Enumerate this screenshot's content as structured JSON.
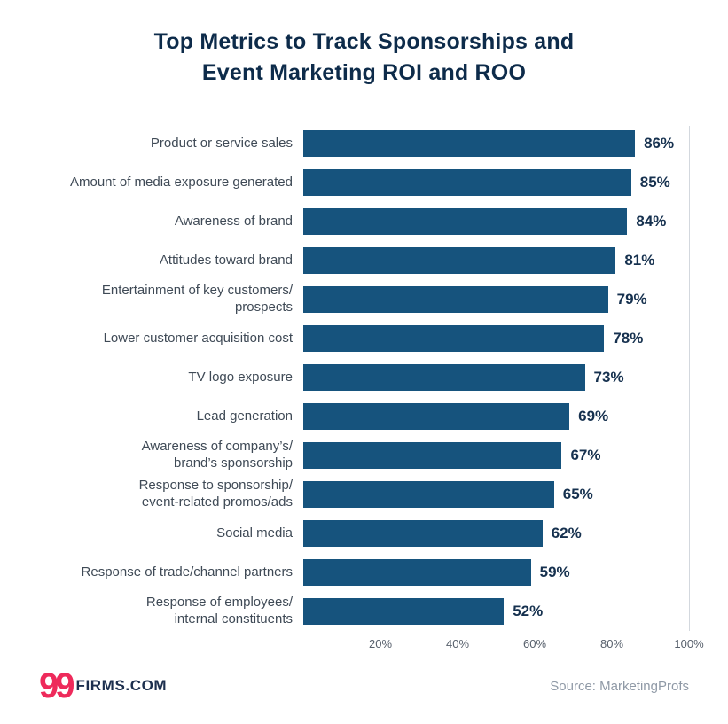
{
  "title_lines": [
    "Top Metrics to Track Sponsorships and",
    "Event Marketing ROI and ROO"
  ],
  "chart_data": {
    "type": "bar",
    "orientation": "horizontal",
    "title": "Top Metrics to Track Sponsorships and Event Marketing ROI and ROO",
    "categories": [
      "Product or service sales",
      "Amount of media exposure generated",
      "Awareness of brand",
      "Attitudes toward brand",
      "Entertainment of key customers/\nprospects",
      "Lower customer acquisition cost",
      "TV logo exposure",
      "Lead generation",
      "Awareness of company’s/\nbrand’s sponsorship",
      "Response to sponsorship/\nevent-related promos/ads",
      "Social media",
      "Response of trade/channel partners",
      "Response of employees/\ninternal constituents"
    ],
    "values": [
      86,
      85,
      84,
      81,
      79,
      78,
      73,
      69,
      67,
      65,
      62,
      59,
      52
    ],
    "value_suffix": "%",
    "xlim": [
      0,
      100
    ],
    "x_ticks": [
      20,
      40,
      60,
      80,
      100
    ],
    "x_tick_suffix": "%",
    "bar_color": "#16537d",
    "grid": "right-edge-line-only",
    "legend": "none"
  },
  "footer": {
    "logo_99": "99",
    "logo_text": "FIRMS.COM",
    "source": "Source: MarketingProfs"
  },
  "colors": {
    "title": "#0d2b4a",
    "bar": "#16537d",
    "value_label": "#16314f",
    "category_label": "#3f4a56",
    "logo_accent": "#ee2a5b",
    "logo_dark": "#1c2f4e",
    "source_text": "#8f99a6",
    "background": "#ffffff"
  }
}
